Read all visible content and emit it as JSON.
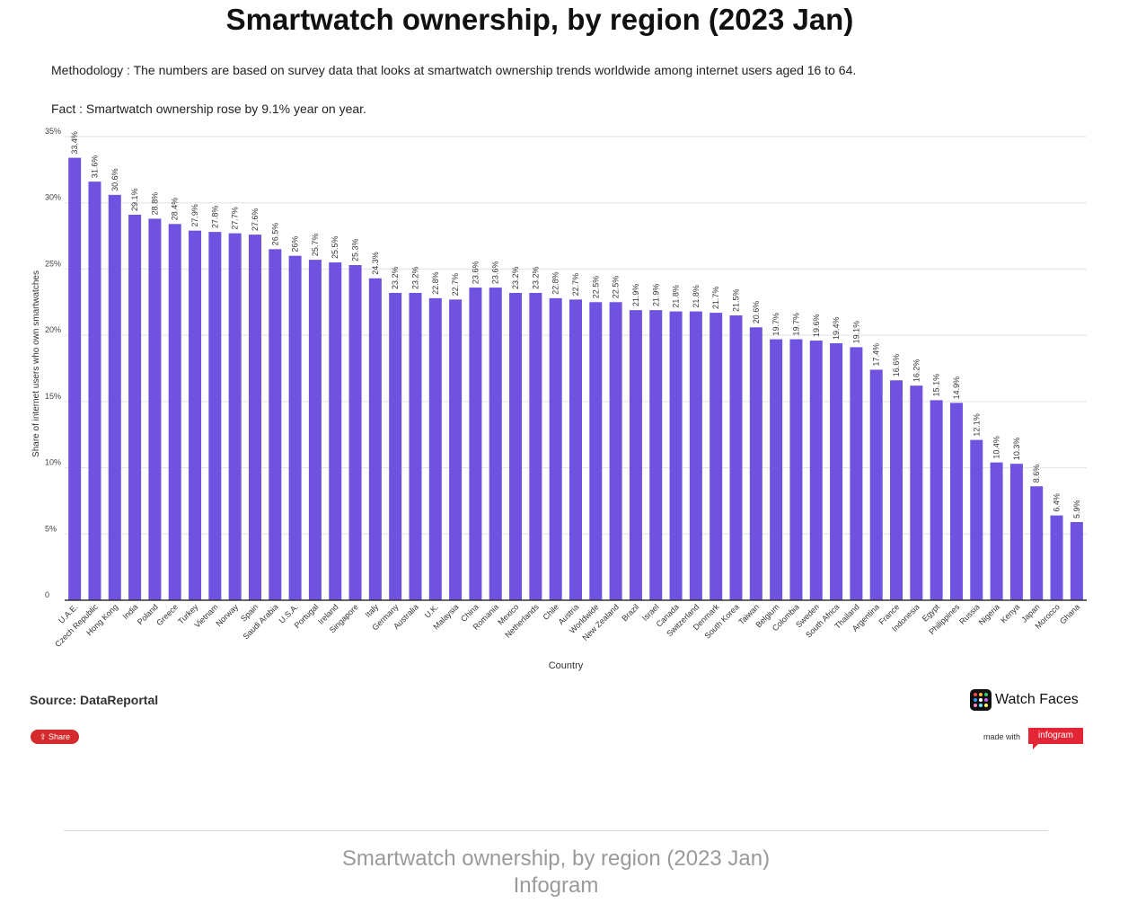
{
  "title": "Smartwatch ownership, by region (2023 Jan)",
  "methodology": "Methodology : The numbers are based on survey data that looks at smartwatch ownership trends worldwide among internet users aged 16 to 64.",
  "fact": "Fact : Smartwatch ownership rose by 9.1% year on year.",
  "source": "Source: DataReportal",
  "share_label": "Share",
  "logo_text": "Watch Faces",
  "made_with": "made with",
  "brand": "infogram",
  "caption_line1": "Smartwatch ownership, by region (2023 Jan)",
  "caption_line2": "Infogram",
  "colors": {
    "bar": "#6f52e0",
    "axis": "#333333",
    "grid": "#e2e2e2"
  },
  "chart_data": {
    "type": "bar",
    "xlabel": "Country",
    "ylabel": "Share of internet users who own smartwatches",
    "ylim": [
      0,
      35
    ],
    "yticks": [
      0,
      5,
      10,
      15,
      20,
      25,
      30,
      35
    ],
    "ytick_labels": [
      "0",
      "5%",
      "10%",
      "15%",
      "20%",
      "25%",
      "30%",
      "35%"
    ],
    "grid": true,
    "categories": [
      "U.A.E.",
      "Czech Republic",
      "Hong Kong",
      "India",
      "Poland",
      "Greece",
      "Turkey",
      "Vietnam",
      "Norway",
      "Spain",
      "Saudi Arabia",
      "U.S.A.",
      "Portugal",
      "Ireland",
      "Singapore",
      "Italy",
      "Germany",
      "Australia",
      "U.K.",
      "Malaysia",
      "China",
      "Romania",
      "Mexico",
      "Netherlands",
      "Chile",
      "Austria",
      "Worldwide",
      "New Zealand",
      "Brazil",
      "Israel",
      "Canada",
      "Switzerland",
      "Denmark",
      "South Korea",
      "Taiwan",
      "Belgium",
      "Colombia",
      "Sweden",
      "South Africa",
      "Thailand",
      "Argentina",
      "France",
      "Indonesia",
      "Egypt",
      "Philippines",
      "Russia",
      "Nigeria",
      "Kenya",
      "Japan",
      "Morocco",
      "Ghana"
    ],
    "values": [
      33.4,
      31.6,
      30.6,
      29.1,
      28.8,
      28.4,
      27.9,
      27.8,
      27.7,
      27.6,
      26.5,
      26,
      25.7,
      25.5,
      25.3,
      24.3,
      23.2,
      23.2,
      22.8,
      22.7,
      23.6,
      23.6,
      23.2,
      23.2,
      22.8,
      22.7,
      22.5,
      22.5,
      21.9,
      21.9,
      21.8,
      21.8,
      21.7,
      21.5,
      20.6,
      19.7,
      19.7,
      19.6,
      19.4,
      19.1,
      17.4,
      16.6,
      16.2,
      15.1,
      14.9,
      12.1,
      10.4,
      10.3,
      8.6,
      6.4,
      5.9
    ],
    "value_labels": [
      "33.4%",
      "31.6%",
      "30.6%",
      "29.1%",
      "28.8%",
      "28.4%",
      "27.9%",
      "27.8%",
      "27.7%",
      "27.6%",
      "26.5%",
      "26%",
      "25.7%",
      "25.5%",
      "25.3%",
      "24.3%",
      "23.2%",
      "23.2%",
      "22.8%",
      "22.7%",
      "23.6%",
      "23.6%",
      "23.2%",
      "23.2%",
      "22.8%",
      "22.7%",
      "22.5%",
      "22.5%",
      "21.9%",
      "21.9%",
      "21.8%",
      "21.8%",
      "21.7%",
      "21.5%",
      "20.6%",
      "19.7%",
      "19.7%",
      "19.6%",
      "19.4%",
      "19.1%",
      "17.4%",
      "16.6%",
      "16.2%",
      "15.1%",
      "14.9%",
      "12.1%",
      "10.4%",
      "10.3%",
      "8.6%",
      "6.4%",
      "5.9%"
    ]
  }
}
